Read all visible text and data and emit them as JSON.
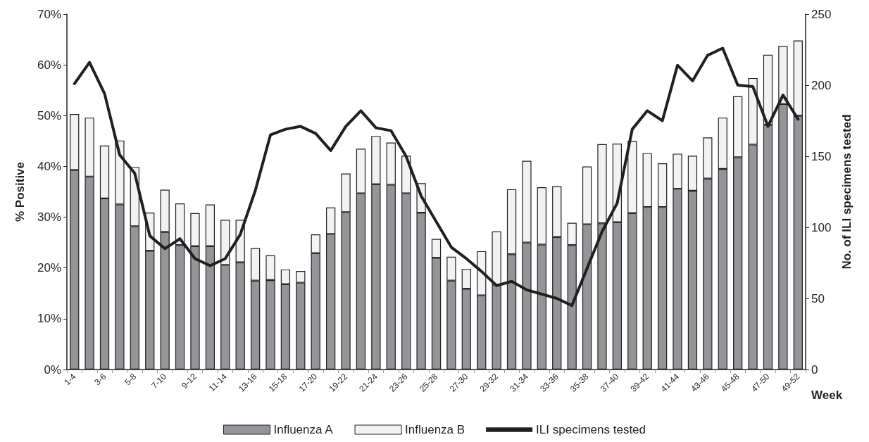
{
  "chart_data": {
    "type": "bar",
    "stacked": true,
    "xlabel": "Week",
    "ylabel": "% Positive",
    "y2label": "No. of ILI specimens tested",
    "categories": [
      "1-4",
      null,
      "3-6",
      null,
      "5-8",
      null,
      "7-10",
      null,
      "9-12",
      null,
      "11-14",
      null,
      "13-16",
      null,
      "15-18",
      null,
      "17-20",
      null,
      "19-22",
      null,
      "21-24",
      null,
      "23-26",
      null,
      "25-28",
      null,
      "27-30",
      null,
      "29-32",
      null,
      "31-34",
      null,
      "33-36",
      null,
      "35-38",
      null,
      "37-40",
      null,
      "39-42",
      null,
      "41-44",
      null,
      "43-46",
      null,
      "45-48",
      null,
      "47-50",
      null,
      "49-52"
    ],
    "series": [
      {
        "name": "Influenza A",
        "color": "#939598",
        "values": [
          39.3,
          38,
          33.7,
          32.5,
          28.2,
          23.4,
          27.1,
          24.5,
          24.3,
          24.3,
          20.6,
          21.1,
          17.5,
          17.6,
          16.8,
          17.1,
          22.9,
          26.7,
          31,
          34.7,
          36.5,
          36.4,
          34.7,
          30.9,
          22,
          17.5,
          15.9,
          14.6,
          16.7,
          22.7,
          25,
          24.6,
          26.1,
          24.5,
          28.6,
          28.8,
          29,
          30.8,
          32,
          32,
          35.6,
          35.2,
          37.6,
          39.5,
          41.8,
          44.3,
          48.2,
          52.3,
          50
        ]
      },
      {
        "name": "Influenza B",
        "color": "#f1f2f2",
        "values": [
          11,
          11.6,
          10.4,
          12.6,
          11.7,
          7.5,
          8.3,
          8.2,
          6.5,
          8.2,
          8.9,
          8.4,
          6.4,
          4.9,
          2.9,
          2.3,
          3.7,
          5.2,
          7.6,
          8.8,
          9.5,
          8.3,
          7.4,
          5.8,
          3.7,
          4.7,
          3.9,
          8.7,
          10.5,
          12.8,
          16.1,
          11.3,
          10,
          4.4,
          11.4,
          15.6,
          15.5,
          14.2,
          10.6,
          8.6,
          6.9,
          6.9,
          8.1,
          10.1,
          12,
          13.1,
          13.8,
          11.4,
          14.8
        ]
      },
      {
        "name": "ILI specimens tested",
        "type": "line",
        "axis": "y2",
        "color": "#231f20",
        "values": [
          201,
          216,
          194,
          151,
          138,
          94,
          85,
          92,
          78,
          73,
          78,
          95,
          126,
          165,
          169,
          171,
          166,
          154,
          171,
          182,
          170,
          168,
          150,
          122,
          104,
          86,
          78,
          69,
          59,
          62,
          56,
          53,
          50,
          45,
          71,
          97,
          117,
          169,
          182,
          175,
          214,
          203,
          221,
          226,
          200,
          199,
          171,
          193,
          176
        ]
      }
    ],
    "ylim": [
      0,
      70
    ],
    "yticks": [
      {
        "value": 0,
        "label": "0%"
      },
      {
        "value": 10,
        "label": "10%"
      },
      {
        "value": 20,
        "label": "20%"
      },
      {
        "value": 30,
        "label": "30%"
      },
      {
        "value": 40,
        "label": "40%"
      },
      {
        "value": 50,
        "label": "50%"
      },
      {
        "value": 60,
        "label": "60%"
      },
      {
        "value": 70,
        "label": "70%"
      }
    ],
    "y2lim": [
      0,
      250
    ],
    "y2ticks": [
      0,
      50,
      100,
      150,
      200,
      250
    ],
    "grid": false,
    "legend": "bottom",
    "marker": "none",
    "line_style": "solid"
  }
}
